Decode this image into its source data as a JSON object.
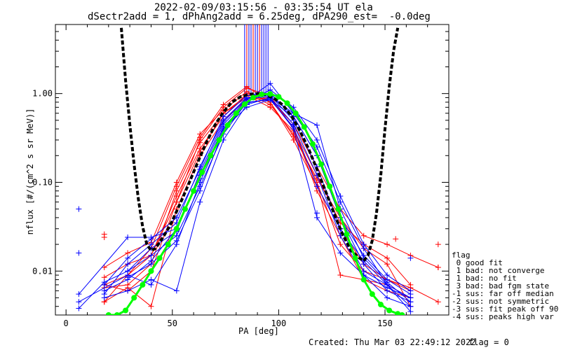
{
  "title_line1": "2022-02-09/03:15:56 - 03:35:54 UT ela",
  "title_line2": "dSectr2add = 1, dPhAng2add = 6.25deg, dPA290_est=  -0.0deg",
  "footer": {
    "created": "Created: Thu Mar 03 22:49:12 2022",
    "flag": "flag = 0"
  },
  "legend": {
    "title": "flag",
    "items": [
      " 0 good fit",
      " 1 bad: not converge",
      " 1 bad: no fit",
      " 3 bad: bad fgm state",
      "-1 sus: far off median",
      "-2 sus: not symmetric",
      "-3 sus: fit peak off 90",
      "-4 sus: peaks high var"
    ]
  },
  "colors": {
    "red": "#ff0000",
    "blue": "#0000ff",
    "black": "#000000",
    "green": "#00ff00"
  },
  "chart_data": {
    "type": "line",
    "xlabel": "PA [deg]",
    "ylabel": "nflux [#/(cm^2 s sr MeV)]",
    "xlim": [
      -5,
      180
    ],
    "ylim": [
      0.0032,
      6.0
    ],
    "yscale": "log",
    "xticks": [
      0,
      50,
      100,
      150
    ],
    "yticks": [
      {
        "v": 0.01,
        "label": "0.01"
      },
      {
        "v": 0.1,
        "label": "0.10"
      },
      {
        "v": 1.0,
        "label": "1.00"
      }
    ],
    "series": [
      {
        "color": "red",
        "marker": "+",
        "x": [
          18,
          29,
          40,
          52,
          63,
          74,
          85,
          96,
          107,
          118,
          129,
          140,
          151,
          162
        ],
        "y": [
          0.007,
          0.009,
          0.015,
          0.06,
          0.3,
          0.7,
          1.15,
          0.95,
          0.4,
          0.12,
          0.035,
          0.02,
          0.014,
          0.007
        ]
      },
      {
        "color": "red",
        "marker": "+",
        "x": [
          18,
          29,
          40,
          52,
          63,
          74,
          85,
          96,
          107,
          118,
          129,
          140,
          151,
          162
        ],
        "y": [
          0.011,
          0.016,
          0.021,
          0.1,
          0.35,
          0.65,
          1.05,
          0.8,
          0.3,
          0.09,
          0.03,
          0.012,
          0.008,
          0.006
        ]
      },
      {
        "color": "red",
        "marker": "+",
        "x": [
          18,
          29,
          40,
          52,
          63,
          74,
          85,
          96,
          107,
          118,
          129,
          140,
          151,
          162,
          175
        ],
        "y": [
          0.0065,
          0.007,
          0.012,
          0.08,
          0.28,
          0.6,
          0.9,
          0.85,
          0.45,
          0.15,
          0.05,
          0.025,
          0.02,
          0.015,
          0.011
        ]
      },
      {
        "color": "red",
        "marker": "+",
        "x": [
          18,
          29,
          40,
          52,
          63,
          74,
          85,
          96,
          107,
          118,
          129,
          140,
          151,
          162,
          175
        ],
        "y": [
          0.0085,
          0.012,
          0.015,
          0.07,
          0.24,
          0.55,
          1.0,
          0.75,
          0.35,
          0.1,
          0.02,
          0.01,
          0.008,
          0.0065,
          0.0045
        ]
      },
      {
        "color": "red",
        "marker": "+",
        "x": [
          18,
          29,
          40,
          52,
          63,
          74,
          85,
          96,
          107,
          118,
          129,
          140,
          151,
          162
        ],
        "y": [
          0.0045,
          0.0065,
          0.004,
          0.05,
          0.2,
          0.5,
          0.85,
          0.9,
          0.4,
          0.08,
          0.025,
          0.008,
          0.006,
          0.005
        ]
      },
      {
        "color": "red",
        "marker": "+",
        "x": [
          18,
          29,
          40,
          52,
          63,
          74,
          85,
          96,
          107,
          118,
          129,
          140,
          151,
          162
        ],
        "y": [
          0.0045,
          0.009,
          0.018,
          0.09,
          0.32,
          0.75,
          1.2,
          0.8,
          0.33,
          0.11,
          0.04,
          0.018,
          0.012,
          0.004
        ]
      },
      {
        "color": "red",
        "marker": "+",
        "x": [
          18,
          29,
          40,
          52,
          63,
          74,
          85,
          96,
          107,
          118,
          129,
          140,
          151,
          162
        ],
        "y": [
          0.007,
          0.006,
          0.01,
          0.06,
          0.22,
          0.6,
          0.95,
          0.7,
          0.38,
          0.1,
          0.009,
          0.008,
          0.007,
          0.005
        ]
      },
      {
        "color": "blue",
        "marker": "+",
        "x": [
          6,
          29,
          40,
          52,
          63,
          74,
          85,
          96,
          107,
          118,
          129,
          140,
          151,
          162
        ],
        "y": [
          0.0055,
          0.024,
          0.024,
          0.03,
          0.12,
          0.45,
          0.85,
          1.3,
          0.6,
          0.25,
          0.06,
          0.018,
          0.007,
          0.005
        ]
      },
      {
        "color": "blue",
        "marker": "+",
        "x": [
          6,
          29,
          40,
          52,
          63,
          74,
          85,
          96,
          107,
          118,
          129,
          140,
          151,
          162
        ],
        "y": [
          0.0045,
          0.009,
          0.007,
          0.02,
          0.1,
          0.4,
          0.7,
          0.85,
          0.55,
          0.2,
          0.04,
          0.012,
          0.006,
          0.0045
        ]
      },
      {
        "color": "blue",
        "marker": "+",
        "x": [
          6,
          18,
          29,
          40,
          52,
          63,
          74,
          85,
          96,
          107,
          118,
          129,
          140,
          151,
          162
        ],
        "y": [
          0.0038,
          0.0075,
          0.01,
          0.015,
          0.025,
          0.09,
          0.35,
          0.8,
          1.1,
          0.7,
          0.3,
          0.07,
          0.02,
          0.009,
          0.006
        ]
      },
      {
        "color": "blue",
        "marker": "+",
        "x": [
          18,
          29,
          40,
          52,
          63,
          74,
          85,
          96,
          107,
          118,
          129,
          140,
          151,
          162
        ],
        "y": [
          0.0055,
          0.012,
          0.02,
          0.035,
          0.15,
          0.5,
          0.9,
          0.95,
          0.5,
          0.15,
          0.03,
          0.01,
          0.007,
          0.004
        ]
      },
      {
        "color": "blue",
        "marker": "+",
        "x": [
          18,
          29,
          40,
          52,
          63,
          74,
          85,
          96,
          107,
          118,
          129,
          140,
          151,
          162
        ],
        "y": [
          0.005,
          0.006,
          0.008,
          0.006,
          0.06,
          0.3,
          0.75,
          0.9,
          0.45,
          0.12,
          0.025,
          0.009,
          0.005,
          0.004
        ]
      },
      {
        "color": "blue",
        "marker": "+",
        "x": [
          18,
          29,
          40,
          52,
          63,
          74,
          85,
          96,
          107,
          118,
          129,
          140,
          151,
          162
        ],
        "y": [
          0.007,
          0.014,
          0.023,
          0.04,
          0.14,
          0.55,
          0.95,
          1.0,
          0.55,
          0.2,
          0.04,
          0.015,
          0.008,
          0.0055
        ]
      },
      {
        "color": "blue",
        "marker": "+",
        "x": [
          18,
          29,
          40,
          52,
          63,
          74,
          85,
          96,
          107,
          118,
          129,
          140,
          151,
          162
        ],
        "y": [
          0.006,
          0.008,
          0.013,
          0.03,
          0.11,
          0.42,
          0.8,
          0.85,
          0.42,
          0.09,
          0.03,
          0.013,
          0.007,
          0.0035
        ]
      },
      {
        "color": "blue",
        "marker": "+",
        "x": [
          29,
          40,
          52,
          63,
          74,
          85,
          96,
          107,
          118,
          129,
          140,
          151,
          162
        ],
        "y": [
          0.01,
          0.018,
          0.028,
          0.13,
          0.48,
          0.88,
          0.92,
          0.6,
          0.44,
          0.05,
          0.014,
          0.0075,
          0.0045
        ]
      },
      {
        "color": "blue",
        "marker": "+",
        "x": [
          29,
          40,
          52,
          63,
          74,
          85,
          96,
          107,
          118,
          129,
          140,
          151,
          162
        ],
        "y": [
          0.0085,
          0.012,
          0.022,
          0.08,
          0.38,
          0.78,
          0.88,
          0.4,
          0.04,
          0.016,
          0.009,
          0.0065,
          0.005
        ]
      }
    ],
    "outlier_points": [
      {
        "color": "blue",
        "x": [
          6,
          6,
          162,
          118,
          107
        ],
        "y": [
          0.05,
          0.016,
          0.014,
          0.045,
          0.44
        ]
      },
      {
        "color": "red",
        "x": [
          18,
          18,
          175,
          155,
          175
        ],
        "y": [
          0.026,
          0.024,
          0.02,
          0.023,
          0.011
        ]
      }
    ],
    "vertical_lines": {
      "x": [
        84,
        85,
        86,
        87,
        88,
        89,
        90,
        91,
        92,
        93,
        94,
        95
      ],
      "colors": [
        "blue",
        "red",
        "blue",
        "blue",
        "red",
        "blue",
        "blue",
        "red",
        "blue",
        "blue",
        "blue",
        "blue"
      ],
      "y_from": 1.0
    },
    "black_fit": {
      "color": "black",
      "style": "dashed",
      "x": [
        26,
        28,
        30,
        32,
        34,
        36,
        38,
        40,
        42,
        44,
        46,
        48,
        50,
        54,
        58,
        62,
        66,
        70,
        74,
        78,
        82,
        86,
        90,
        94,
        98,
        102,
        106,
        110,
        114,
        118,
        122,
        126,
        130,
        134,
        138,
        140,
        142,
        144,
        146,
        148,
        150,
        152,
        154,
        156
      ],
      "y": [
        5.5,
        1.4,
        0.45,
        0.16,
        0.065,
        0.032,
        0.02,
        0.017,
        0.018,
        0.021,
        0.025,
        0.03,
        0.037,
        0.06,
        0.1,
        0.17,
        0.28,
        0.44,
        0.62,
        0.8,
        0.92,
        0.98,
        1.0,
        0.97,
        0.88,
        0.74,
        0.56,
        0.38,
        0.24,
        0.14,
        0.08,
        0.045,
        0.026,
        0.017,
        0.014,
        0.013,
        0.015,
        0.022,
        0.045,
        0.12,
        0.4,
        1.2,
        3.0,
        5.5
      ]
    },
    "green_fit": {
      "color": "green",
      "marker": "circle",
      "x": [
        20,
        24,
        28,
        32,
        36,
        40,
        44,
        48,
        52,
        56,
        60,
        64,
        68,
        72,
        76,
        80,
        84,
        88,
        92,
        96,
        100,
        104,
        108,
        112,
        116,
        120,
        124,
        128,
        132,
        136,
        140,
        144,
        148,
        152,
        156,
        158
      ],
      "y": [
        0.0032,
        0.0032,
        0.0036,
        0.005,
        0.007,
        0.01,
        0.014,
        0.02,
        0.03,
        0.05,
        0.08,
        0.13,
        0.2,
        0.3,
        0.44,
        0.6,
        0.76,
        0.9,
        0.98,
        0.99,
        0.92,
        0.78,
        0.6,
        0.42,
        0.27,
        0.16,
        0.09,
        0.05,
        0.026,
        0.014,
        0.008,
        0.0055,
        0.0042,
        0.0036,
        0.0033,
        0.0032
      ]
    }
  }
}
